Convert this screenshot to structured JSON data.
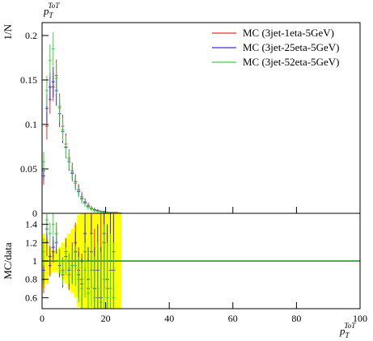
{
  "chart_data": {
    "type": "histogram_ratio",
    "title": {
      "base": "p",
      "sub": "T",
      "sup": "ToT"
    },
    "ylabel": "1/N",
    "ratio_ylabel": "MC/data",
    "xlabel": {
      "base": "p",
      "sub": "T",
      "sup": "ToT"
    },
    "bins": [
      0,
      1,
      2,
      3,
      4,
      5,
      6,
      7,
      8,
      9,
      10,
      11,
      12,
      13,
      14,
      15,
      16,
      17,
      18,
      19,
      20,
      21,
      22,
      23,
      24,
      25
    ],
    "xlim": [
      0,
      100
    ],
    "xticks": [
      0,
      20,
      40,
      60,
      80,
      100
    ],
    "ylim": [
      0,
      0.2145
    ],
    "yticks": [
      0,
      0.05,
      0.1,
      0.15,
      0.2
    ],
    "ratio_ylim": [
      0.48,
      1.52
    ],
    "ratio_yticks": [
      0.6,
      0.8,
      1,
      1.2,
      1.4
    ],
    "reference": 1,
    "reference_color": "#1f8a1f",
    "band_color": "#ffff00",
    "band": [
      0.3,
      0.25,
      0.15,
      0.12,
      0.12,
      0.15,
      0.2,
      0.25,
      0.3,
      0.35,
      0.4,
      0.5,
      0.6,
      0.6,
      0.6,
      0.6,
      0.6,
      0.6,
      0.6,
      0.6,
      0.6,
      0.6,
      0.6,
      0.6,
      0.6
    ],
    "legend": "upper right",
    "series": [
      {
        "name": "MC (3jet-1eta-5GeV)",
        "color": "#e03030",
        "values": [
          0.042,
          0.098,
          0.128,
          0.142,
          0.155,
          0.12,
          0.098,
          0.078,
          0.062,
          0.048,
          0.036,
          0.027,
          0.019,
          0.013,
          0.009,
          0.006,
          0.004,
          0.003,
          0.002,
          0.002,
          0.001,
          0.001,
          0.001,
          0.001,
          0.0005
        ],
        "errors": [
          0.01,
          0.015,
          0.016,
          0.016,
          0.018,
          0.015,
          0.013,
          0.012,
          0.01,
          0.009,
          0.008,
          0.006,
          0.005,
          0.004,
          0.003,
          0.0025,
          0.002,
          0.0015,
          0.0012,
          0.001,
          0.001,
          0.0008,
          0.0008,
          0.0007,
          0.0005
        ],
        "ratio": [
          0.8,
          1.2,
          0.95,
          1.1,
          1.3,
          1.0,
          0.9,
          1.1,
          0.85,
          1.0,
          1.2,
          0.9,
          0.8,
          1.1,
          0.7,
          1.3,
          0.9,
          0.6,
          1.0,
          1.2,
          0.7,
          0.9,
          1.1,
          null,
          null
        ],
        "ratio_errors": [
          0.15,
          0.15,
          0.12,
          0.12,
          0.12,
          0.13,
          0.14,
          0.15,
          0.17,
          0.2,
          0.22,
          0.25,
          0.28,
          0.3,
          0.35,
          0.4,
          0.45,
          0.5,
          0.55,
          0.6,
          0.6,
          0.6,
          0.6,
          0.6,
          0.6
        ]
      },
      {
        "name": "MC (3jet-25eta-5GeV)",
        "color": "#3030e0",
        "values": [
          0.048,
          0.118,
          0.142,
          0.148,
          0.138,
          0.112,
          0.092,
          0.074,
          0.058,
          0.045,
          0.034,
          0.025,
          0.017,
          0.012,
          0.008,
          0.005,
          0.004,
          0.003,
          0.002,
          0.0015,
          0.001,
          0.001,
          0.0008,
          0.0006,
          0.0005
        ],
        "errors": [
          0.01,
          0.016,
          0.016,
          0.017,
          0.017,
          0.015,
          0.013,
          0.012,
          0.01,
          0.009,
          0.008,
          0.006,
          0.005,
          0.004,
          0.003,
          0.0025,
          0.002,
          0.0015,
          0.0012,
          0.001,
          0.001,
          0.0008,
          0.0008,
          0.0007,
          0.0005
        ],
        "ratio": [
          0.9,
          1.35,
          1.05,
          1.15,
          1.2,
          0.95,
          0.85,
          1.05,
          0.9,
          0.95,
          1.1,
          0.85,
          0.75,
          1.3,
          0.8,
          1.1,
          0.7,
          0.9,
          0.6,
          1.3,
          0.8,
          1.0,
          0.9,
          null,
          null
        ],
        "ratio_errors": [
          0.15,
          0.15,
          0.12,
          0.12,
          0.12,
          0.13,
          0.14,
          0.15,
          0.17,
          0.2,
          0.22,
          0.25,
          0.28,
          0.3,
          0.35,
          0.4,
          0.45,
          0.5,
          0.55,
          0.6,
          0.6,
          0.6,
          0.6,
          0.6,
          0.6
        ]
      },
      {
        "name": "MC (3jet-52eta-5GeV)",
        "color": "#40d040",
        "values": [
          0.058,
          0.138,
          0.172,
          0.185,
          0.152,
          0.118,
          0.094,
          0.075,
          0.06,
          0.046,
          0.034,
          0.024,
          0.016,
          0.011,
          0.007,
          0.005,
          0.003,
          0.002,
          0.0015,
          0.001,
          0.001,
          0.0008,
          0.0006,
          0.0005,
          0.0004
        ],
        "errors": [
          0.011,
          0.017,
          0.018,
          0.019,
          0.017,
          0.015,
          0.013,
          0.012,
          0.01,
          0.009,
          0.008,
          0.006,
          0.005,
          0.004,
          0.003,
          0.0025,
          0.002,
          0.0015,
          0.0012,
          0.001,
          0.001,
          0.0008,
          0.0008,
          0.0007,
          0.0005
        ],
        "ratio": [
          1.1,
          1.45,
          1.3,
          1.4,
          1.3,
          1.0,
          0.88,
          1.0,
          0.92,
          0.95,
          0.95,
          0.8,
          0.7,
          0.9,
          0.65,
          0.9,
          0.6,
          0.7,
          0.55,
          0.8,
          0.6,
          0.7,
          0.6,
          null,
          null
        ],
        "ratio_errors": [
          0.15,
          0.15,
          0.12,
          0.12,
          0.12,
          0.13,
          0.14,
          0.15,
          0.17,
          0.2,
          0.22,
          0.25,
          0.28,
          0.3,
          0.35,
          0.4,
          0.45,
          0.5,
          0.55,
          0.6,
          0.6,
          0.6,
          0.6,
          0.6,
          0.6
        ]
      }
    ]
  }
}
